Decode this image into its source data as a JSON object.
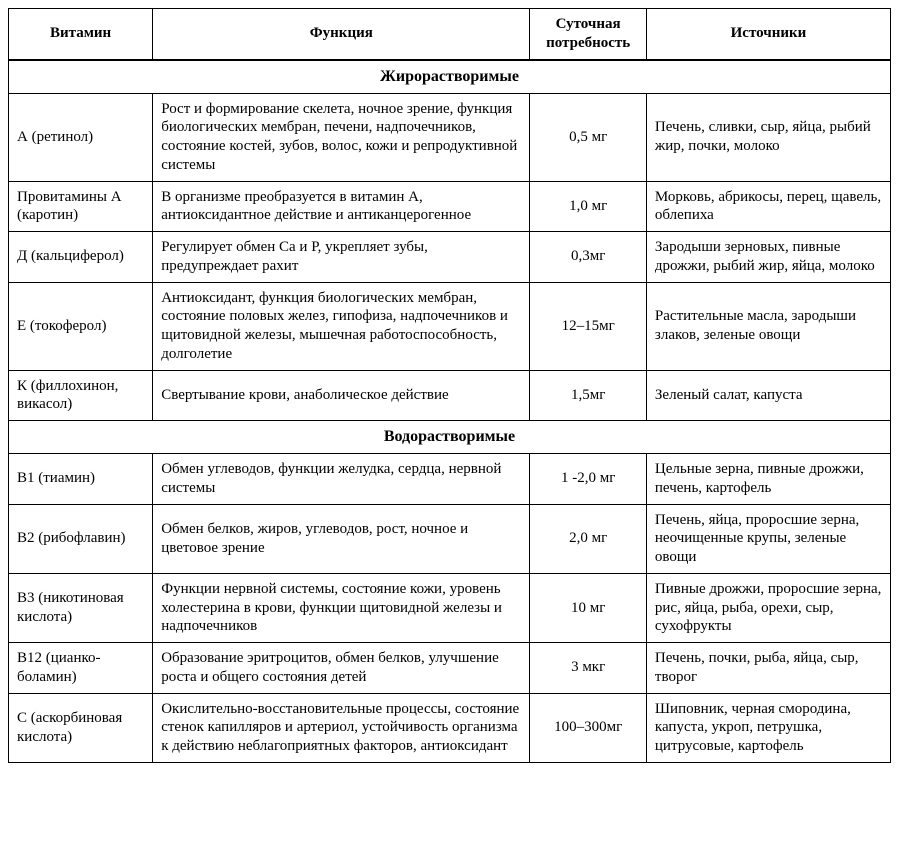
{
  "headers": {
    "vitamin": "Витамин",
    "function": "Функция",
    "need": "Суточная потребность",
    "sources": "Источники"
  },
  "sections": [
    {
      "title": "Жирорастворимые",
      "rows": [
        {
          "vitamin": "А (ретинол)",
          "function": "Рост и формирование скелета, ночное зрение, функция биологических мембран, печени, надпочечников, состояние костей, зубов, волос, кожи и репродуктивной системы",
          "need": "0,5 мг",
          "sources": "Печень, сливки, сыр, яйца, рыбий жир, почки, молоко"
        },
        {
          "vitamin": "Провитамины А (каротин)",
          "function": "В организме преобразуется в витамин А, антиоксидантное действие и антиканцероген­ное",
          "need": "1,0 мг",
          "sources": "Морковь, абрикосы, перец, щавель, облепиха"
        },
        {
          "vitamin": "Д (кальциферол)",
          "function": "Регулирует обмен Са и Р, укрепляет зубы, предупреждает рахит",
          "need": "0,3мг",
          "sources": "Зародыши зерновых, пивные дрожжи, рыбий жир, яйца, молоко"
        },
        {
          "vitamin": "Е (токоферол)",
          "function": "Антиоксидант, функция биологических мембран, состояние половых желез, гипофиза, надпочечников и щитовидной железы, мышечная работоспособность, долголетие",
          "need": "12–15мг",
          "sources": "Растительные масла, зародыши злаков, зеленые овощи"
        },
        {
          "vitamin": "К (филлохинон, викасол)",
          "function": "Свертывание крови, анаболическое действие",
          "need": "1,5мг",
          "sources": "Зеленый салат, капуста"
        }
      ]
    },
    {
      "title": "Водорастворимые",
      "rows": [
        {
          "vitamin": "В1 (тиамин)",
          "function": "Обмен углеводов, функции желудка, сердца, нервной системы",
          "need": "1 -2,0 мг",
          "sources": "Цельные зерна, пивные дрожжи, печень, картофель"
        },
        {
          "vitamin": "В2 (рибофлавин)",
          "function": "Обмен белков, жиров, углеводов, рост, ночное и цветовое зрение",
          "need": "2,0 мг",
          "sources": "Печень, яйца, проросшие зерна, неочищенные крупы, зеленые овощи"
        },
        {
          "vitamin": "В3 (никотиновая кислота)",
          "function": "Функции нервной системы, состояние кожи, уровень холестерина в крови, функции щитовидной железы и надпочечников",
          "need": "10 мг",
          "sources": "Пивные дрожжи, проросшие зерна, рис, яйца, рыба, орехи, сыр, сухофрукты"
        },
        {
          "vitamin": "В12 (цианко­боламин)",
          "function": "Образование эритроцитов, обмен белков, улучшение роста и общего состояния детей",
          "need": "3 мкг",
          "sources": "Печень, почки, рыба, яйца, сыр, творог"
        },
        {
          "vitamin": "С (аскорбиновая кислота)",
          "function": "Окислительно-восстановительные процессы, состояние стенок капилляров и артериол, устойчивость организма к действию неблагоприятных факторов, антиоксидант",
          "need": "100–300мг",
          "sources": "Шиповник, черная смородина, капуста, укроп, петрушка, цитрусовые, картофель"
        }
      ]
    }
  ]
}
